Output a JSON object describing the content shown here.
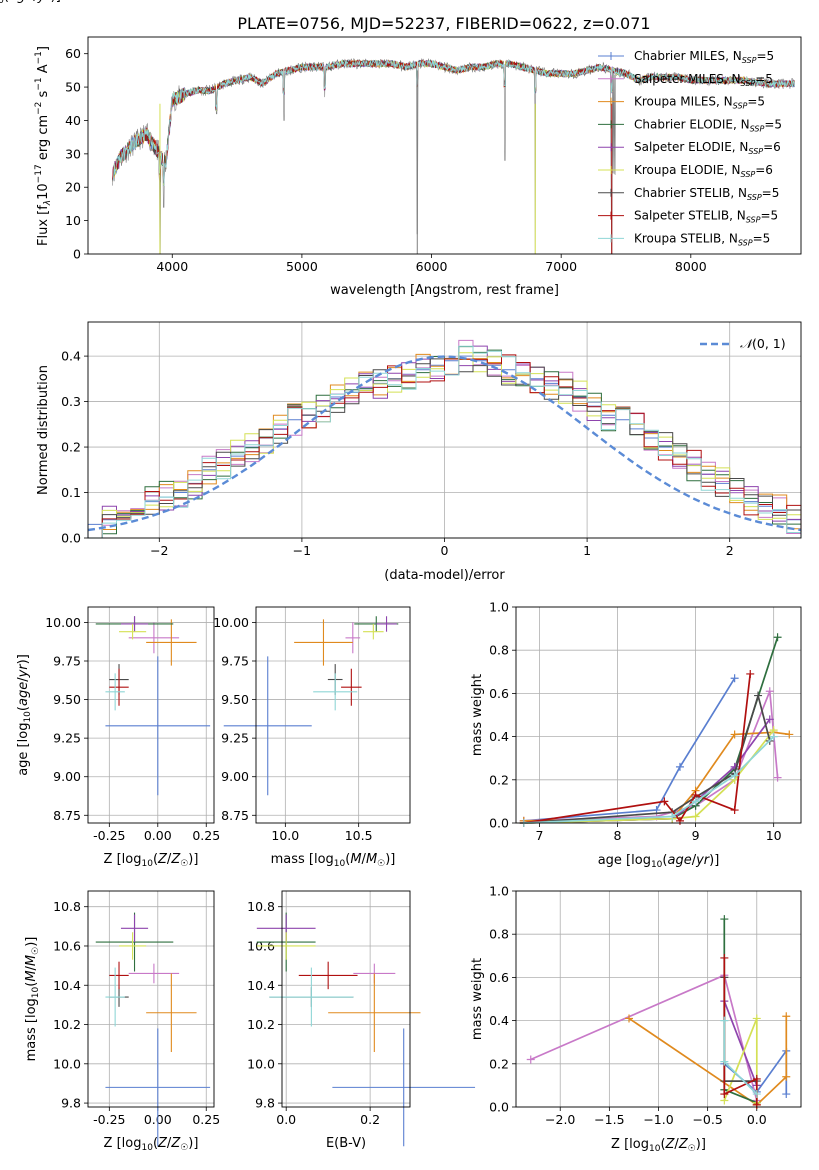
{
  "figure": {
    "title": "PLATE=0756, MJD=52237, FIBERID=0622, z=0.071"
  },
  "colors": {
    "Chabrier MILES": "#5a7fd0",
    "Salpeter MILES": "#c879c8",
    "Kroupa MILES": "#e08a1e",
    "Chabrier ELODIE": "#2f6f3f",
    "Salpeter ELODIE": "#8e44ad",
    "Kroupa ELODIE": "#d4e055",
    "Chabrier STELIB": "#4a4a4a",
    "Salpeter STELIB": "#b01010",
    "Kroupa STELIB": "#8fd6d6",
    "data": "#808080",
    "normal": "#5b8bd6",
    "z_line": "#e58ac8"
  },
  "chart_data": [
    {
      "id": "spectrum",
      "type": "line",
      "xlabel": "wavelength [Angstrom, rest frame]",
      "ylabel": "Flux [f_λ 10^-17 erg cm^-2 s^-1 A^-1]",
      "ylabel_parts": {
        "a": "Flux [f",
        "sub": "λ",
        "b": "10",
        "sup1": "−17",
        "c": " erg cm",
        "sup2": "−2",
        "d": " s",
        "sup3": "−1",
        "e": " A",
        "sup4": "−1",
        "f": "]"
      },
      "xlim": [
        3350,
        8850
      ],
      "ylim": [
        0,
        65
      ],
      "xticks": [
        4000,
        5000,
        6000,
        7000,
        8000
      ],
      "yticks": [
        0,
        10,
        20,
        30,
        40,
        50,
        60
      ],
      "grid": false,
      "legend_position": "top-right",
      "legend": [
        {
          "name": "Chabrier MILES",
          "nssp": "5"
        },
        {
          "name": "Salpeter MILES",
          "nssp": "5"
        },
        {
          "name": "Kroupa MILES",
          "nssp": "5"
        },
        {
          "name": "Chabrier ELODIE",
          "nssp": "5"
        },
        {
          "name": "Salpeter ELODIE",
          "nssp": "6"
        },
        {
          "name": "Kroupa ELODIE",
          "nssp": "6"
        },
        {
          "name": "Chabrier STELIB",
          "nssp": "5"
        },
        {
          "name": "Salpeter STELIB",
          "nssp": "5"
        },
        {
          "name": "Kroupa STELIB",
          "nssp": "5"
        }
      ],
      "continuum": {
        "x": [
          3540,
          3600,
          3700,
          3800,
          3900,
          3950,
          4000,
          4100,
          4200,
          4300,
          4400,
          4500,
          4600,
          4700,
          4800,
          4900,
          5000,
          5100,
          5200,
          5300,
          5400,
          5500,
          5600,
          5700,
          5800,
          5900,
          6000,
          6100,
          6200,
          6300,
          6400,
          6500,
          6600,
          6700,
          6800,
          6900,
          7000,
          7100,
          7200,
          7300,
          7400,
          7500,
          7600,
          7700,
          7800,
          7900,
          8000,
          8200,
          8400,
          8600,
          8800
        ],
        "y": [
          24,
          29,
          33,
          36,
          30,
          27,
          46,
          48,
          49,
          49,
          51,
          52,
          53,
          51,
          54,
          55,
          56,
          56,
          56,
          57,
          57,
          57,
          57,
          57,
          56,
          57,
          57,
          56,
          55,
          56,
          56,
          57,
          57,
          56,
          55,
          54,
          54,
          54,
          55,
          56,
          55,
          54,
          52,
          53,
          53,
          53,
          52,
          52,
          52,
          51,
          51
        ]
      },
      "dips": [
        {
          "x": 3905,
          "y": 0
        },
        {
          "x": 3934,
          "y": 14
        },
        {
          "x": 4341,
          "y": 42
        },
        {
          "x": 4861,
          "y": 40
        },
        {
          "x": 5176,
          "y": 47
        },
        {
          "x": 5890,
          "y": 6
        },
        {
          "x": 6565,
          "y": 28
        },
        {
          "x": 6800,
          "y": 0
        },
        {
          "x": 7390,
          "y": 0
        }
      ]
    },
    {
      "id": "residuals",
      "type": "histogram",
      "xlabel": "(data-model)/error",
      "ylabel": "Normed distribution",
      "xlim": [
        -2.5,
        2.5
      ],
      "ylim": [
        0,
        0.475
      ],
      "xticks": [
        -2,
        -1,
        0,
        1,
        2
      ],
      "yticks": [
        0.0,
        0.1,
        0.2,
        0.3,
        0.4
      ],
      "grid": true,
      "legend_position": "top-right",
      "legend": [
        {
          "name": "N(0,1)",
          "label_parts": {
            "cal": "𝒩",
            "rest": "(0, 1)"
          }
        }
      ],
      "bin_width": 0.1,
      "series": [
        {
          "name": "Chabrier MILES",
          "values": [
            0.03,
            0.04,
            0.05,
            0.06,
            0.08,
            0.09,
            0.1,
            0.12,
            0.15,
            0.16,
            0.18,
            0.2,
            0.22,
            0.24,
            0.26,
            0.27,
            0.29,
            0.31,
            0.32,
            0.33,
            0.34,
            0.35,
            0.36,
            0.37,
            0.38,
            0.39,
            0.4,
            0.39,
            0.38,
            0.37,
            0.36,
            0.35,
            0.34,
            0.33,
            0.31,
            0.29,
            0.27,
            0.26,
            0.24,
            0.22,
            0.2,
            0.18,
            0.16,
            0.14,
            0.12,
            0.1,
            0.08,
            0.07,
            0.06,
            0.04
          ]
        }
      ]
    },
    {
      "id": "z-age",
      "type": "scatter",
      "xlabel": "Z [log10(Z/Z☉)]",
      "ylabel": "age [log10(age/yr)]",
      "xlim": [
        -0.36,
        0.29
      ],
      "ylim": [
        8.7,
        10.1
      ],
      "xticks": [
        "-0.25",
        "0.00",
        "0.25"
      ],
      "yticks": [
        "8.75",
        "9.00",
        "9.25",
        "9.50",
        "9.75",
        "10.00"
      ]
    },
    {
      "id": "mass-age",
      "type": "scatter",
      "xlabel": "mass [log10(M/M☉)]",
      "xlim": [
        9.8,
        10.85
      ],
      "ylim": [
        8.7,
        10.1
      ],
      "xticks": [
        "10.0",
        "10.5"
      ]
    },
    {
      "id": "age-weight",
      "type": "line",
      "xlabel": "age [log10(age/yr)]",
      "ylabel": "mass weight",
      "xlim": [
        6.7,
        10.35
      ],
      "ylim": [
        0,
        1.0
      ],
      "xticks": [
        "7",
        "8",
        "9",
        "10"
      ],
      "yticks": [
        "0.0",
        "0.2",
        "0.4",
        "0.6",
        "0.8",
        "1.0"
      ],
      "grid": true,
      "series": [
        {
          "name": "Chabrier MILES",
          "x": [
            6.8,
            8.5,
            8.8,
            9.5
          ],
          "y": [
            0.01,
            0.06,
            0.26,
            0.67
          ]
        },
        {
          "name": "Salpeter MILES",
          "x": [
            6.8,
            8.5,
            9.0,
            9.5,
            9.95,
            10.05
          ],
          "y": [
            0.01,
            0.03,
            0.08,
            0.2,
            0.61,
            0.21
          ]
        },
        {
          "name": "Kroupa MILES",
          "x": [
            6.8,
            8.7,
            9.0,
            9.5,
            10.0,
            10.2
          ],
          "y": [
            0.01,
            0.02,
            0.15,
            0.41,
            0.42,
            0.41
          ]
        },
        {
          "name": "Chabrier ELODIE",
          "x": [
            6.8,
            8.7,
            9.0,
            9.5,
            10.05
          ],
          "y": [
            0.0,
            0.02,
            0.08,
            0.25,
            0.86
          ]
        },
        {
          "name": "Salpeter ELODIE",
          "x": [
            6.8,
            8.7,
            9.0,
            9.5,
            9.95
          ],
          "y": [
            0.0,
            0.02,
            0.1,
            0.26,
            0.48
          ]
        },
        {
          "name": "Kroupa ELODIE",
          "x": [
            6.8,
            8.7,
            9.0,
            9.5,
            10.0
          ],
          "y": [
            0.0,
            0.02,
            0.03,
            0.2,
            0.43
          ]
        },
        {
          "name": "Chabrier STELIB",
          "x": [
            6.8,
            8.7,
            9.0,
            9.5,
            9.8,
            9.95
          ],
          "y": [
            0.0,
            0.05,
            0.12,
            0.23,
            0.59,
            0.38
          ]
        },
        {
          "name": "Salpeter STELIB",
          "x": [
            6.8,
            8.6,
            8.8,
            9.0,
            9.5,
            9.7
          ],
          "y": [
            0.0,
            0.1,
            0.01,
            0.13,
            0.06,
            0.69
          ]
        },
        {
          "name": "Kroupa STELIB",
          "x": [
            6.8,
            8.7,
            9.0,
            9.5,
            10.0
          ],
          "y": [
            0.0,
            0.03,
            0.1,
            0.22,
            0.4
          ]
        }
      ]
    },
    {
      "id": "z-mass",
      "type": "scatter",
      "xlabel": "Z [log10(Z/Z☉)]",
      "ylabel": "mass [log10(M/M☉)]",
      "xlim": [
        -0.36,
        0.29
      ],
      "ylim": [
        9.78,
        10.88
      ],
      "xticks": [
        "-0.25",
        "0.00",
        "0.25"
      ],
      "yticks": [
        "9.8",
        "10.0",
        "10.2",
        "10.4",
        "10.6",
        "10.8"
      ]
    },
    {
      "id": "ebv-mass",
      "type": "scatter",
      "xlabel": "E(B-V)",
      "xlim": [
        -0.01,
        0.295
      ],
      "ylim": [
        9.78,
        10.88
      ],
      "xticks": [
        "0.0",
        "0.2"
      ]
    },
    {
      "id": "z-weight",
      "type": "line",
      "xlabel": "Z [log10(Z/Z☉)]",
      "ylabel": "mass weight",
      "xlim": [
        -2.45,
        0.45
      ],
      "ylim": [
        0,
        1.0
      ],
      "xticks": [
        "−2.0",
        "−1.5",
        "−1.0",
        "−0.5",
        "0.0"
      ],
      "yticks": [
        "0.0",
        "0.2",
        "0.4",
        "0.6",
        "0.8",
        "1.0"
      ],
      "grid": true,
      "series": [
        {
          "name": "Chabrier MILES",
          "x": [
            -0.33,
            0.0,
            0.3,
            0.3
          ],
          "y": [
            0.2,
            0.07,
            0.26,
            0.06
          ]
        },
        {
          "name": "Salpeter MILES",
          "x": [
            -2.3,
            -0.33,
            0.0
          ],
          "y": [
            0.22,
            0.61,
            0.03
          ]
        },
        {
          "name": "Kroupa MILES",
          "x": [
            -1.3,
            0.0,
            0.3,
            0.3
          ],
          "y": [
            0.41,
            0.01,
            0.14,
            0.42
          ]
        },
        {
          "name": "Chabrier ELODIE",
          "x": [
            -0.33,
            -0.33,
            0.0
          ],
          "y": [
            0.87,
            0.08,
            0.02
          ]
        },
        {
          "name": "Salpeter ELODIE",
          "x": [
            -0.33,
            0.0
          ],
          "y": [
            0.49,
            0.1
          ]
        },
        {
          "name": "Kroupa ELODIE",
          "x": [
            -0.33,
            0.0,
            0.0
          ],
          "y": [
            0.03,
            0.41,
            0.02
          ]
        },
        {
          "name": "Chabrier STELIB",
          "x": [
            -0.33,
            -0.33,
            0.0
          ],
          "y": [
            0.6,
            0.12,
            0.12
          ]
        },
        {
          "name": "Salpeter STELIB",
          "x": [
            -0.33,
            -0.33,
            0.0,
            0.0
          ],
          "y": [
            0.69,
            0.06,
            0.13,
            0.01
          ]
        },
        {
          "name": "Kroupa STELIB",
          "x": [
            -0.33,
            -0.33,
            0.0
          ],
          "y": [
            0.4,
            0.21,
            0.06
          ]
        }
      ]
    }
  ],
  "estimates": [
    {
      "name": "Chabrier MILES",
      "Z": 0.0,
      "Z_err": 0.27,
      "age": 9.33,
      "age_err": 0.45,
      "mass": 9.88,
      "mass_err": 0.3,
      "ebv": 0.28,
      "ebv_err": 0.17
    },
    {
      "name": "Salpeter MILES",
      "Z": -0.02,
      "Z_err": 0.13,
      "age": 9.9,
      "age_err": 0.1,
      "mass": 10.46,
      "mass_err": 0.05,
      "ebv": 0.21,
      "ebv_err": 0.05
    },
    {
      "name": "Kroupa MILES",
      "Z": 0.07,
      "Z_err": 0.13,
      "age": 9.87,
      "age_err": 0.15,
      "mass": 10.26,
      "mass_err": 0.2,
      "ebv": 0.21,
      "ebv_err": 0.11
    },
    {
      "name": "Chabrier ELODIE",
      "Z": -0.12,
      "Z_err": 0.2,
      "age": 9.99,
      "age_err": 0.05,
      "mass": 10.62,
      "mass_err": 0.15,
      "ebv": 0.0,
      "ebv_err": 0.07
    },
    {
      "name": "Salpeter ELODIE",
      "Z": -0.12,
      "Z_err": 0.07,
      "age": 9.99,
      "age_err": 0.05,
      "mass": 10.69,
      "mass_err": 0.07,
      "ebv": 0.0,
      "ebv_err": 0.07
    },
    {
      "name": "Kroupa ELODIE",
      "Z": -0.13,
      "Z_err": 0.07,
      "age": 9.94,
      "age_err": 0.05,
      "mass": 10.6,
      "mass_err": 0.07,
      "ebv": 0.0,
      "ebv_err": 0.07
    },
    {
      "name": "Chabrier STELIB",
      "Z": -0.2,
      "Z_err": 0.05,
      "age": 9.63,
      "age_err": 0.1,
      "mass": 10.34,
      "mass_err": 0.05,
      "ebv": 0.06,
      "ebv_err": 0.1
    },
    {
      "name": "Salpeter STELIB",
      "Z": -0.2,
      "Z_err": 0.05,
      "age": 9.58,
      "age_err": 0.12,
      "mass": 10.45,
      "mass_err": 0.07,
      "ebv": 0.1,
      "ebv_err": 0.07
    },
    {
      "name": "Kroupa STELIB",
      "Z": -0.22,
      "Z_err": 0.05,
      "age": 9.55,
      "age_err": 0.12,
      "mass": 10.34,
      "mass_err": 0.15,
      "ebv": 0.06,
      "ebv_err": 0.1
    }
  ]
}
